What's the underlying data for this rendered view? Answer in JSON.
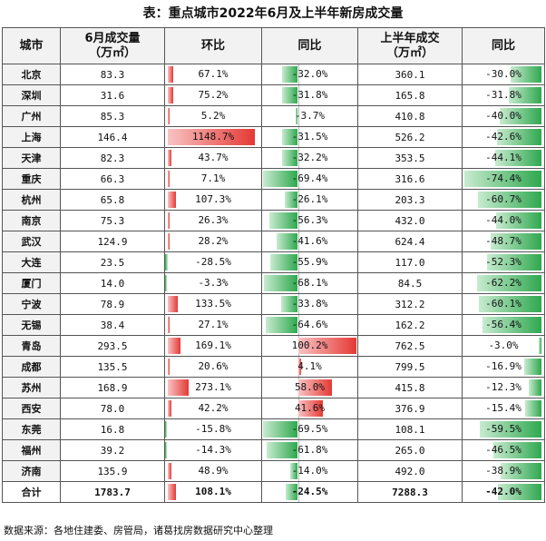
{
  "title": "表：重点城市2022年6月及上半年新房成交量",
  "headers": {
    "city": "城市",
    "june_volume_line1": "6月成交量",
    "june_volume_line2": "（万㎡）",
    "mom": "环比",
    "yoy": "同比",
    "h1_volume_line1": "上半年成交",
    "h1_volume_line2": "（万㎡）",
    "h1_yoy": "同比"
  },
  "rows": [
    {
      "city": "北京",
      "june": "83.3",
      "mom": "67.1%",
      "yoy": "-32.0%",
      "h1": "360.1",
      "h1_yoy": "-30.0%"
    },
    {
      "city": "深圳",
      "june": "31.6",
      "mom": "75.2%",
      "yoy": "-31.8%",
      "h1": "165.8",
      "h1_yoy": "-31.8%"
    },
    {
      "city": "广州",
      "june": "85.3",
      "mom": "5.2%",
      "yoy": "-3.7%",
      "h1": "410.8",
      "h1_yoy": "-40.0%"
    },
    {
      "city": "上海",
      "june": "146.4",
      "mom": "1148.7%",
      "yoy": "-31.5%",
      "h1": "526.2",
      "h1_yoy": "-42.6%"
    },
    {
      "city": "天津",
      "june": "82.3",
      "mom": "43.7%",
      "yoy": "-32.2%",
      "h1": "353.5",
      "h1_yoy": "-44.1%"
    },
    {
      "city": "重庆",
      "june": "66.3",
      "mom": "7.1%",
      "yoy": "-69.4%",
      "h1": "316.6",
      "h1_yoy": "-74.4%"
    },
    {
      "city": "杭州",
      "june": "65.8",
      "mom": "107.3%",
      "yoy": "-26.1%",
      "h1": "203.3",
      "h1_yoy": "-60.7%"
    },
    {
      "city": "南京",
      "june": "75.3",
      "mom": "26.3%",
      "yoy": "-56.3%",
      "h1": "432.0",
      "h1_yoy": "-44.0%"
    },
    {
      "city": "武汉",
      "june": "124.9",
      "mom": "28.2%",
      "yoy": "-41.6%",
      "h1": "624.4",
      "h1_yoy": "-48.7%"
    },
    {
      "city": "大连",
      "june": "23.5",
      "mom": "-28.5%",
      "yoy": "-55.9%",
      "h1": "117.0",
      "h1_yoy": "-52.3%"
    },
    {
      "city": "厦门",
      "june": "14.0",
      "mom": "-3.3%",
      "yoy": "-68.1%",
      "h1": "84.5",
      "h1_yoy": "-62.2%"
    },
    {
      "city": "宁波",
      "june": "78.9",
      "mom": "133.5%",
      "yoy": "-33.8%",
      "h1": "312.2",
      "h1_yoy": "-60.1%"
    },
    {
      "city": "无锡",
      "june": "38.4",
      "mom": "27.1%",
      "yoy": "-64.6%",
      "h1": "162.2",
      "h1_yoy": "-56.4%"
    },
    {
      "city": "青岛",
      "june": "293.5",
      "mom": "169.1%",
      "yoy": "100.2%",
      "h1": "762.5",
      "h1_yoy": "-3.0%"
    },
    {
      "city": "成都",
      "june": "135.5",
      "mom": "20.6%",
      "yoy": "4.1%",
      "h1": "799.5",
      "h1_yoy": "-16.9%"
    },
    {
      "city": "苏州",
      "june": "168.9",
      "mom": "273.1%",
      "yoy": "58.0%",
      "h1": "415.8",
      "h1_yoy": "-12.3%"
    },
    {
      "city": "西安",
      "june": "78.0",
      "mom": "42.2%",
      "yoy": "41.6%",
      "h1": "376.9",
      "h1_yoy": "-15.4%"
    },
    {
      "city": "东莞",
      "june": "16.8",
      "mom": "-15.8%",
      "yoy": "-69.5%",
      "h1": "108.1",
      "h1_yoy": "-59.5%"
    },
    {
      "city": "福州",
      "june": "39.2",
      "mom": "-14.3%",
      "yoy": "-61.8%",
      "h1": "265.0",
      "h1_yoy": "-46.5%"
    },
    {
      "city": "济南",
      "june": "135.9",
      "mom": "48.9%",
      "yoy": "-14.0%",
      "h1": "492.0",
      "h1_yoy": "-38.9%"
    }
  ],
  "total": {
    "city": "合计",
    "june": "1783.7",
    "mom": "108.1%",
    "yoy": "-24.5%",
    "h1": "7288.3",
    "h1_yoy": "-42.0%"
  },
  "source": "数据来源：各地住建委、房管局，诸葛找房数据研究中心整理",
  "colors": {
    "positive": "#e53935",
    "negative": "#2fa84f"
  }
}
